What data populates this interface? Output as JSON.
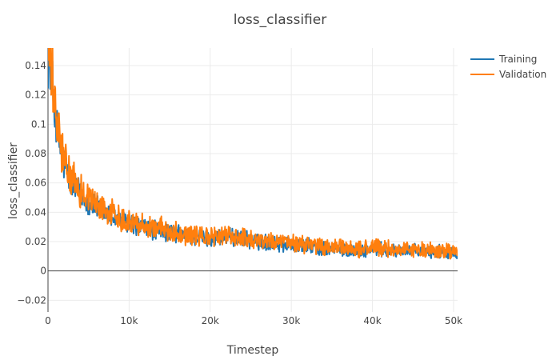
{
  "chart_data": {
    "type": "line",
    "title": "loss_classifier",
    "xlabel": "Timestep",
    "ylabel": "loss_classifier",
    "xlim": [
      0,
      50500
    ],
    "ylim": [
      -0.028,
      0.152
    ],
    "xticks": [
      0,
      10000,
      20000,
      30000,
      40000,
      50000
    ],
    "xtick_labels": [
      "0",
      "10k",
      "20k",
      "30k",
      "40k",
      "50k"
    ],
    "yticks": [
      -0.02,
      0,
      0.02,
      0.04,
      0.06,
      0.08,
      0.1,
      0.12,
      0.14
    ],
    "ytick_labels": [
      "−0.02",
      "0",
      "0.02",
      "0.04",
      "0.06",
      "0.08",
      "0.1",
      "0.12",
      "0.14"
    ],
    "grid": true,
    "legend": "top-right",
    "series": [
      {
        "name": "Training",
        "color": "#1f77b4",
        "x": [
          0,
          300,
          600,
          1000,
          1500,
          2000,
          2500,
          3000,
          4000,
          5000,
          6000,
          7000,
          8000,
          9000,
          10000,
          12000,
          14000,
          16000,
          18000,
          20000,
          22000,
          24000,
          26000,
          28000,
          30000,
          32000,
          34000,
          36000,
          38000,
          40000,
          42000,
          44000,
          46000,
          48000,
          50000,
          50500
        ],
        "y": [
          0.15,
          0.138,
          0.122,
          0.1,
          0.084,
          0.072,
          0.065,
          0.058,
          0.052,
          0.047,
          0.043,
          0.04,
          0.037,
          0.034,
          0.032,
          0.029,
          0.027,
          0.025,
          0.023,
          0.022,
          0.023,
          0.022,
          0.02,
          0.019,
          0.018,
          0.017,
          0.015,
          0.015,
          0.014,
          0.015,
          0.014,
          0.014,
          0.013,
          0.013,
          0.013,
          0.012
        ]
      },
      {
        "name": "Validation",
        "color": "#ff7f0e",
        "x": [
          0,
          300,
          600,
          1000,
          1500,
          2000,
          2500,
          3000,
          4000,
          5000,
          6000,
          7000,
          8000,
          9000,
          10000,
          12000,
          14000,
          16000,
          18000,
          20000,
          22000,
          24000,
          26000,
          28000,
          30000,
          32000,
          34000,
          36000,
          38000,
          40000,
          42000,
          44000,
          46000,
          48000,
          50000,
          50500
        ],
        "y": [
          0.152,
          0.14,
          0.125,
          0.103,
          0.087,
          0.075,
          0.068,
          0.061,
          0.055,
          0.05,
          0.045,
          0.042,
          0.039,
          0.036,
          0.034,
          0.031,
          0.029,
          0.026,
          0.024,
          0.023,
          0.024,
          0.023,
          0.021,
          0.02,
          0.019,
          0.018,
          0.016,
          0.016,
          0.015,
          0.016,
          0.015,
          0.015,
          0.014,
          0.014,
          0.013,
          0.012
        ]
      }
    ]
  }
}
